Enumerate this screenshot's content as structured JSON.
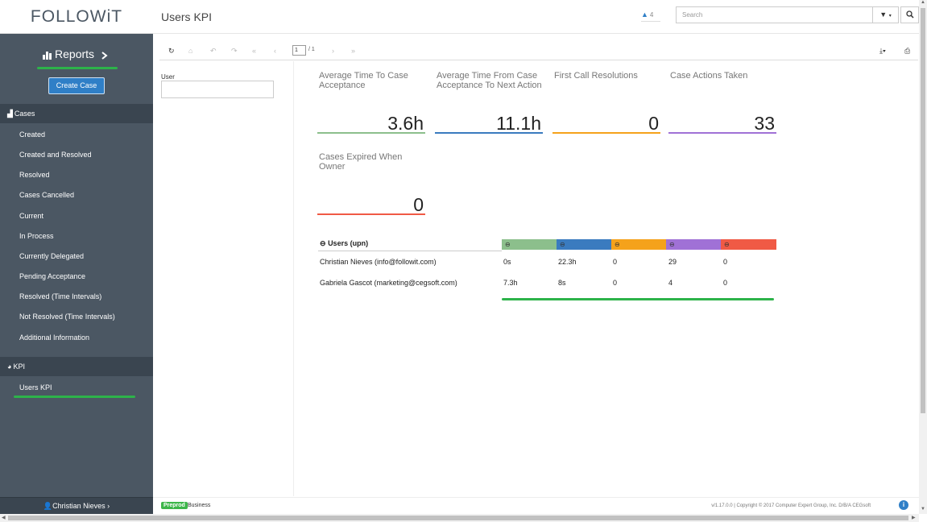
{
  "app": {
    "logo": "FOLLOWiT",
    "page_title": "Users KPI"
  },
  "header": {
    "notifications_count": "4",
    "search_placeholder": "Search"
  },
  "sidebar": {
    "reports_label": "Reports",
    "create_case_label": "Create Case",
    "cases_section": "Cases",
    "cases_items": [
      "Created",
      "Created and Resolved",
      "Resolved",
      "Cases Cancelled",
      "Current",
      "In Process",
      "Currently Delegated",
      "Pending Acceptance",
      "Resolved (Time Intervals)",
      "Not Resolved (Time Intervals)",
      "Additional Information"
    ],
    "kpi_section": "KPI",
    "kpi_items": [
      "Users KPI"
    ],
    "user_name": "Christian Nieves"
  },
  "toolbar": {
    "page_current": "1",
    "page_total": "/ 1"
  },
  "filter": {
    "user_label": "User"
  },
  "kpis": [
    {
      "label": "Average Time To Case Acceptance",
      "value": "3.6h",
      "color": "#8cbf8c"
    },
    {
      "label": "Average Time From Case Acceptance To Next Action",
      "value": "11.1h",
      "color": "#3a7bbf"
    },
    {
      "label": "First Call Resolutions",
      "value": "0",
      "color": "#f5a21b"
    },
    {
      "label": "Case Actions Taken",
      "value": "33",
      "color": "#a071d6"
    },
    {
      "label": "Cases Expired When Owner",
      "value": "0",
      "color": "#f05a45"
    }
  ],
  "grid": {
    "group_header": "Users (upn)",
    "rows": [
      {
        "user": "Christian Nieves (info@followit.com)",
        "values": [
          "0s",
          "22.3h",
          "0",
          "29",
          "0"
        ]
      },
      {
        "user": "Gabriela  Gascot (marketing@cegsoft.com)",
        "values": [
          "7.3h",
          "8s",
          "0",
          "4",
          "0"
        ]
      }
    ]
  },
  "footer": {
    "env_badge": "Preprod",
    "env_name": "Business",
    "copyright": "v/1.17.0.0 | Copyright © 2017 Computer Expert Group, Inc. D/B/A CEGsoft"
  }
}
